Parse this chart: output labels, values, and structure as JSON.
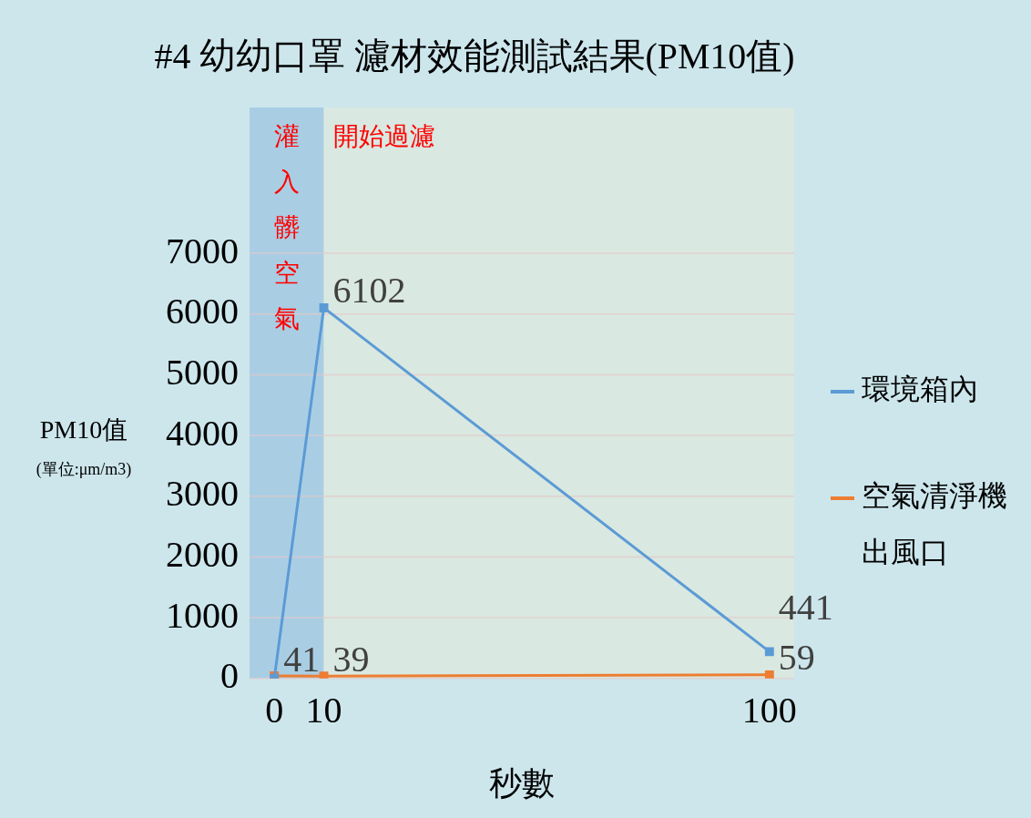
{
  "chart_data": {
    "type": "line",
    "title": "#4 幼幼口罩 濾材效能測試結果(PM10值)",
    "xlabel": "秒數",
    "ylabel": "PM10值\n(單位:μm/m3)",
    "x": [
      0,
      10,
      100
    ],
    "xlim": [
      -5,
      105
    ],
    "xticks": [
      0,
      10,
      100
    ],
    "ylim": [
      0,
      9400
    ],
    "yticks": [
      0,
      1000,
      2000,
      3000,
      4000,
      5000,
      6000,
      7000
    ],
    "grid": "y",
    "legend": "right",
    "marker": "square",
    "line_style": "solid",
    "bands": [
      {
        "axis": "x",
        "from": -5,
        "to": 10,
        "label": "灌入髒空氣",
        "color": "#a9cee4"
      },
      {
        "axis": "x",
        "from": 10,
        "to": 105,
        "label": "開始過濾",
        "color": "#d9e8e1"
      }
    ],
    "series": [
      {
        "name": "環境箱內",
        "color": "#5b9bd5",
        "values": [
          0,
          6102,
          441
        ],
        "value_labels": [
          null,
          "6102",
          "441"
        ]
      },
      {
        "name": "空氣清淨機出風口",
        "color": "#ed7d31",
        "values": [
          41,
          39,
          59
        ],
        "value_labels": [
          "41",
          "39",
          "59"
        ]
      }
    ]
  }
}
